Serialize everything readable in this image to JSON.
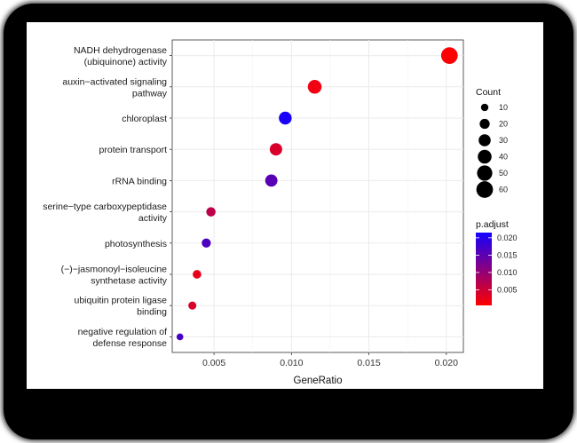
{
  "colors": {
    "low": "#ff0000",
    "high": "#1400ff",
    "panel": "#ffffff",
    "grid": "#ebebeb",
    "frame": "#000000"
  },
  "chart_data": {
    "type": "scatter",
    "title": "",
    "xlabel": "GeneRatio",
    "ylabel": "",
    "xlim": [
      0.0023,
      0.0211
    ],
    "x_ticks": [
      0.005,
      0.01,
      0.015,
      0.02
    ],
    "x_tick_labels": [
      "0.005",
      "0.010",
      "0.015",
      "0.020"
    ],
    "grid": true,
    "legend_placement": "right",
    "size_legend": {
      "title": "Count",
      "values": [
        10,
        20,
        30,
        40,
        50,
        60
      ],
      "labels": [
        "10",
        "20",
        "30",
        "40",
        "50",
        "60"
      ]
    },
    "color_legend": {
      "title": "p.adjust",
      "min": 0.0005,
      "max": 0.0215,
      "ticks": [
        0.005,
        0.01,
        0.015,
        0.02
      ],
      "tick_labels": [
        "0.005",
        "0.010",
        "0.015",
        "0.020"
      ]
    },
    "points": [
      {
        "term": [
          "NADH dehydrogenase",
          "(ubiquinone) activity"
        ],
        "gene_ratio": 0.0202,
        "count": 60,
        "p_adjust": 0.0008
      },
      {
        "term": [
          "auxin−activated signaling",
          "pathway"
        ],
        "gene_ratio": 0.0115,
        "count": 40,
        "p_adjust": 0.0018
      },
      {
        "term": [
          "chloroplast"
        ],
        "gene_ratio": 0.0096,
        "count": 34,
        "p_adjust": 0.021
      },
      {
        "term": [
          "protein transport"
        ],
        "gene_ratio": 0.009,
        "count": 32,
        "p_adjust": 0.004
      },
      {
        "term": [
          "rRNA binding"
        ],
        "gene_ratio": 0.0087,
        "count": 31,
        "p_adjust": 0.0155
      },
      {
        "term": [
          "serine−type carboxypeptidase",
          "activity"
        ],
        "gene_ratio": 0.0048,
        "count": 17,
        "p_adjust": 0.0065
      },
      {
        "term": [
          "photosynthesis"
        ],
        "gene_ratio": 0.0045,
        "count": 16,
        "p_adjust": 0.0165
      },
      {
        "term": [
          "(−)−jasmonoyl−isoleucine",
          "synthetase activity"
        ],
        "gene_ratio": 0.0039,
        "count": 14,
        "p_adjust": 0.0025
      },
      {
        "term": [
          "ubiquitin protein ligase",
          "binding"
        ],
        "gene_ratio": 0.0036,
        "count": 12,
        "p_adjust": 0.004
      },
      {
        "term": [
          "negative regulation of",
          "defense response"
        ],
        "gene_ratio": 0.0028,
        "count": 8,
        "p_adjust": 0.017
      }
    ]
  }
}
